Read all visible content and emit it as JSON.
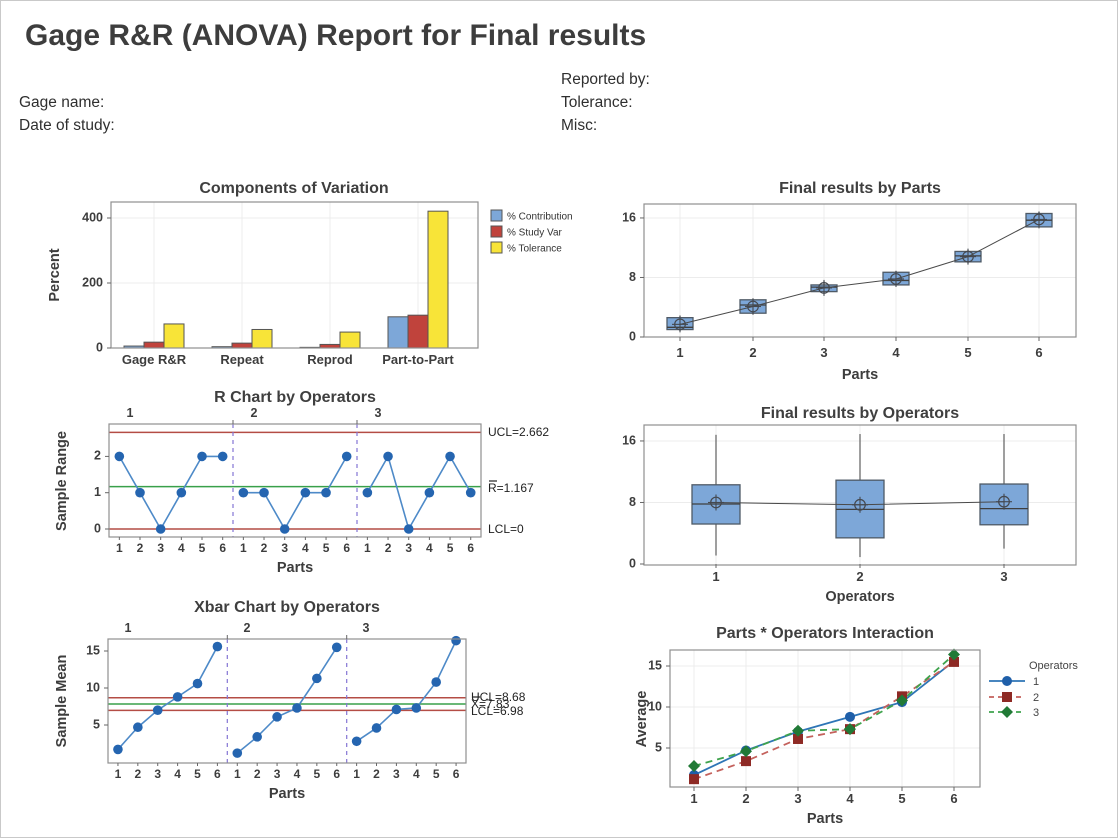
{
  "header": {
    "title": "Gage R&R (ANOVA) Report for Final results",
    "fields_left": [
      {
        "label": "Gage name:"
      },
      {
        "label": "Date of study:"
      }
    ],
    "fields_right": [
      {
        "label": "Reported by:"
      },
      {
        "label": "Tolerance:"
      },
      {
        "label": "Misc:"
      }
    ]
  },
  "colors": {
    "text": "#3d3d3d",
    "title_text": "#3f3f3f",
    "grid": "#ececec",
    "frame": "#8f8f8f",
    "bar_blue": "#7DA7D8",
    "bar_red": "#C0433C",
    "bar_yellow": "#F8E438",
    "bar_stroke": "#555555",
    "limit_line": "#B44D45",
    "center_line": "#39A04A",
    "separator": "#8474D4",
    "control_point": "#2565B0",
    "control_line": "#4E8AC8",
    "box_fill": "#7DA7D8",
    "box_stroke": "#4F5A66",
    "whisker": "#6b6b6b",
    "median": "#3f3f3f",
    "mean_symbol": "#44484f",
    "connect": "#4a4a4a"
  },
  "chart_data": [
    {
      "id": "components",
      "type": "bar",
      "title": "Components of Variation",
      "ylabel": "Percent",
      "yticks": [
        0,
        200,
        400
      ],
      "ylim": [
        0,
        450
      ],
      "categories": [
        "Gage R&R",
        "Repeat",
        "Reprod",
        "Part-to-Part"
      ],
      "legend_position": "right",
      "series": [
        {
          "name": "% Contribution",
          "color": "#7DA7D8",
          "values": [
            6,
            4,
            2,
            96
          ]
        },
        {
          "name": "% Study Var",
          "color": "#C0433C",
          "values": [
            18,
            15,
            11,
            101
          ]
        },
        {
          "name": "% Tolerance",
          "color": "#F8E438",
          "values": [
            74,
            57,
            49,
            421
          ]
        }
      ]
    },
    {
      "id": "parts_boxplot",
      "type": "boxplot",
      "title": "Final results by Parts",
      "xlabel": "Parts",
      "yticks": [
        0,
        8,
        16
      ],
      "ylim": [
        0,
        17.9
      ],
      "categories": [
        "1",
        "2",
        "3",
        "4",
        "5",
        "6"
      ],
      "boxes": [
        {
          "whisker_low": 0.8,
          "q1": 1.0,
          "median": 1.3,
          "mean": 1.7,
          "q3": 2.6,
          "whisker_high": 2.9
        },
        {
          "whisker_low": 3.0,
          "q1": 3.2,
          "median": 4.3,
          "mean": 4.1,
          "q3": 5.0,
          "whisker_high": 5.2
        },
        {
          "whisker_low": 5.9,
          "q1": 6.1,
          "median": 6.7,
          "mean": 6.6,
          "q3": 7.0,
          "whisker_high": 7.5
        },
        {
          "whisker_low": 6.9,
          "q1": 7.0,
          "median": 7.6,
          "mean": 7.8,
          "q3": 8.7,
          "whisker_high": 8.9
        },
        {
          "whisker_low": 9.9,
          "q1": 10.1,
          "median": 10.9,
          "mean": 10.8,
          "q3": 11.5,
          "whisker_high": 11.7
        },
        {
          "whisker_low": 14.6,
          "q1": 14.8,
          "median": 15.7,
          "mean": 15.8,
          "q3": 16.6,
          "whisker_high": 16.8
        }
      ],
      "mean_line": [
        1.7,
        4.1,
        6.6,
        7.8,
        10.8,
        15.8
      ]
    },
    {
      "id": "r_chart",
      "type": "control",
      "title": "R Chart by Operators",
      "ylabel": "Sample Range",
      "xlabel": "Parts",
      "yticks": [
        0,
        1,
        2
      ],
      "panel_labels": [
        "1",
        "2",
        "3"
      ],
      "x_labels": [
        "1",
        "2",
        "3",
        "4",
        "5",
        "6"
      ],
      "limits": {
        "ucl": {
          "label": "UCL=2.662",
          "value": 2.662
        },
        "center": {
          "label": "R=1.167",
          "value": 1.167,
          "overbar": true
        },
        "lcl": {
          "label": "LCL=0",
          "value": 0
        }
      },
      "series": [
        [
          2,
          1,
          0,
          1,
          2,
          2
        ],
        [
          1,
          1,
          0,
          1,
          1,
          2
        ],
        [
          1,
          2,
          0,
          1,
          2,
          1
        ]
      ]
    },
    {
      "id": "operators_boxplot",
      "type": "boxplot",
      "title": "Final results by Operators",
      "xlabel": "Operators",
      "yticks": [
        0,
        8,
        16
      ],
      "ylim": [
        0,
        18.2
      ],
      "categories": [
        "1",
        "2",
        "3"
      ],
      "boxes": [
        {
          "whisker_low": 1.1,
          "q1": 5.2,
          "median": 7.8,
          "mean": 8.0,
          "q3": 10.3,
          "whisker_high": 16.8
        },
        {
          "whisker_low": 0.9,
          "q1": 3.4,
          "median": 7.1,
          "mean": 7.7,
          "q3": 10.9,
          "whisker_high": 16.9
        },
        {
          "whisker_low": 2.0,
          "q1": 5.1,
          "median": 7.2,
          "mean": 8.1,
          "q3": 10.4,
          "whisker_high": 16.9
        }
      ],
      "mean_line": [
        8.0,
        7.7,
        8.1
      ]
    },
    {
      "id": "xbar_chart",
      "type": "control",
      "title": "Xbar Chart by Operators",
      "ylabel": "Sample Mean",
      "xlabel": "Parts",
      "yticks": [
        5,
        10,
        15
      ],
      "panel_labels": [
        "1",
        "2",
        "3"
      ],
      "x_labels": [
        "1",
        "2",
        "3",
        "4",
        "5",
        "6"
      ],
      "limits": {
        "ucl": {
          "label": "UCL=8.68",
          "value": 8.68
        },
        "center": {
          "label": "X=7.83",
          "value": 7.83,
          "overbar": true
        },
        "lcl": {
          "label": "LCL=6.98",
          "value": 6.98
        }
      },
      "series": [
        [
          1.7,
          4.7,
          7.0,
          8.8,
          10.6,
          15.6
        ],
        [
          1.2,
          3.4,
          6.1,
          7.3,
          11.3,
          15.5
        ],
        [
          2.8,
          4.6,
          7.1,
          7.3,
          10.8,
          16.4
        ]
      ]
    },
    {
      "id": "interaction",
      "type": "line",
      "title": "Parts * Operators Interaction",
      "ylabel": "Average",
      "xlabel": "Parts",
      "yticks": [
        5,
        10,
        15
      ],
      "categories": [
        "1",
        "2",
        "3",
        "4",
        "5",
        "6"
      ],
      "legend_title": "Operators",
      "series": [
        {
          "name": "1",
          "marker": "circle",
          "dash": "solid",
          "line_color": "#2E75B6",
          "marker_color": "#1F5FA9",
          "values": [
            1.7,
            4.7,
            7.0,
            8.8,
            10.6,
            15.6
          ]
        },
        {
          "name": "2",
          "marker": "square",
          "dash": "dashed",
          "line_color": "#C4615C",
          "marker_color": "#8E2A25",
          "values": [
            1.2,
            3.4,
            6.1,
            7.3,
            11.3,
            15.5
          ]
        },
        {
          "name": "3",
          "marker": "diamond",
          "dash": "dashed",
          "line_color": "#3FA34D",
          "marker_color": "#217A36",
          "values": [
            2.8,
            4.6,
            7.1,
            7.3,
            10.8,
            16.4
          ]
        }
      ]
    }
  ]
}
